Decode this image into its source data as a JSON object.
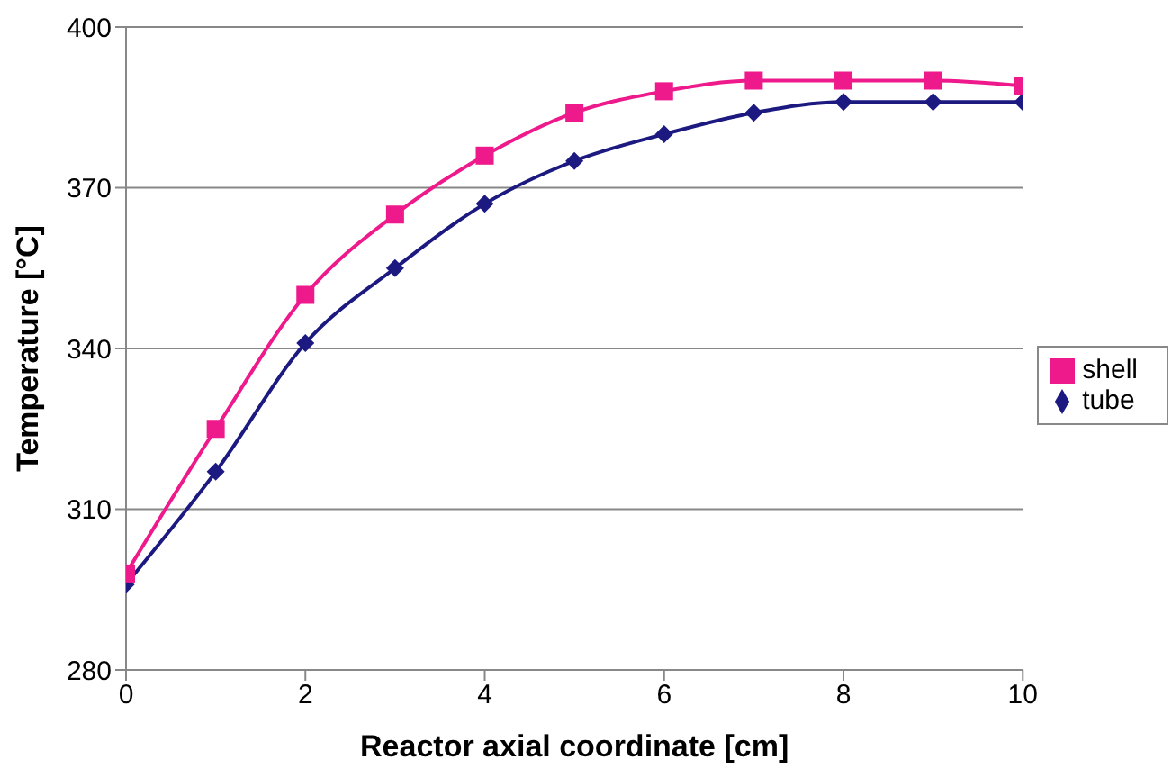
{
  "chart_data": {
    "type": "line",
    "xlabel": "Reactor axial coordinate [cm]",
    "ylabel": "Temperature [°C]",
    "x": [
      0,
      1,
      2,
      3,
      4,
      5,
      6,
      7,
      8,
      9,
      10
    ],
    "series": [
      {
        "name": "tube",
        "color": "#1c1a80",
        "marker": "diamond",
        "values": [
          296,
          317,
          341,
          355,
          367,
          375,
          380,
          384,
          386,
          386,
          386
        ]
      },
      {
        "name": "shell",
        "color": "#ee1a8c",
        "marker": "square",
        "values": [
          298,
          325,
          350,
          365,
          376,
          384,
          388,
          390,
          390,
          390,
          389
        ]
      }
    ],
    "xlim": [
      0,
      10
    ],
    "xticks": [
      0,
      2,
      4,
      6,
      8,
      10
    ],
    "ylim": [
      280,
      400
    ],
    "yticks": [
      280,
      310,
      340,
      370,
      400
    ],
    "grid": "y",
    "legend": "right"
  }
}
